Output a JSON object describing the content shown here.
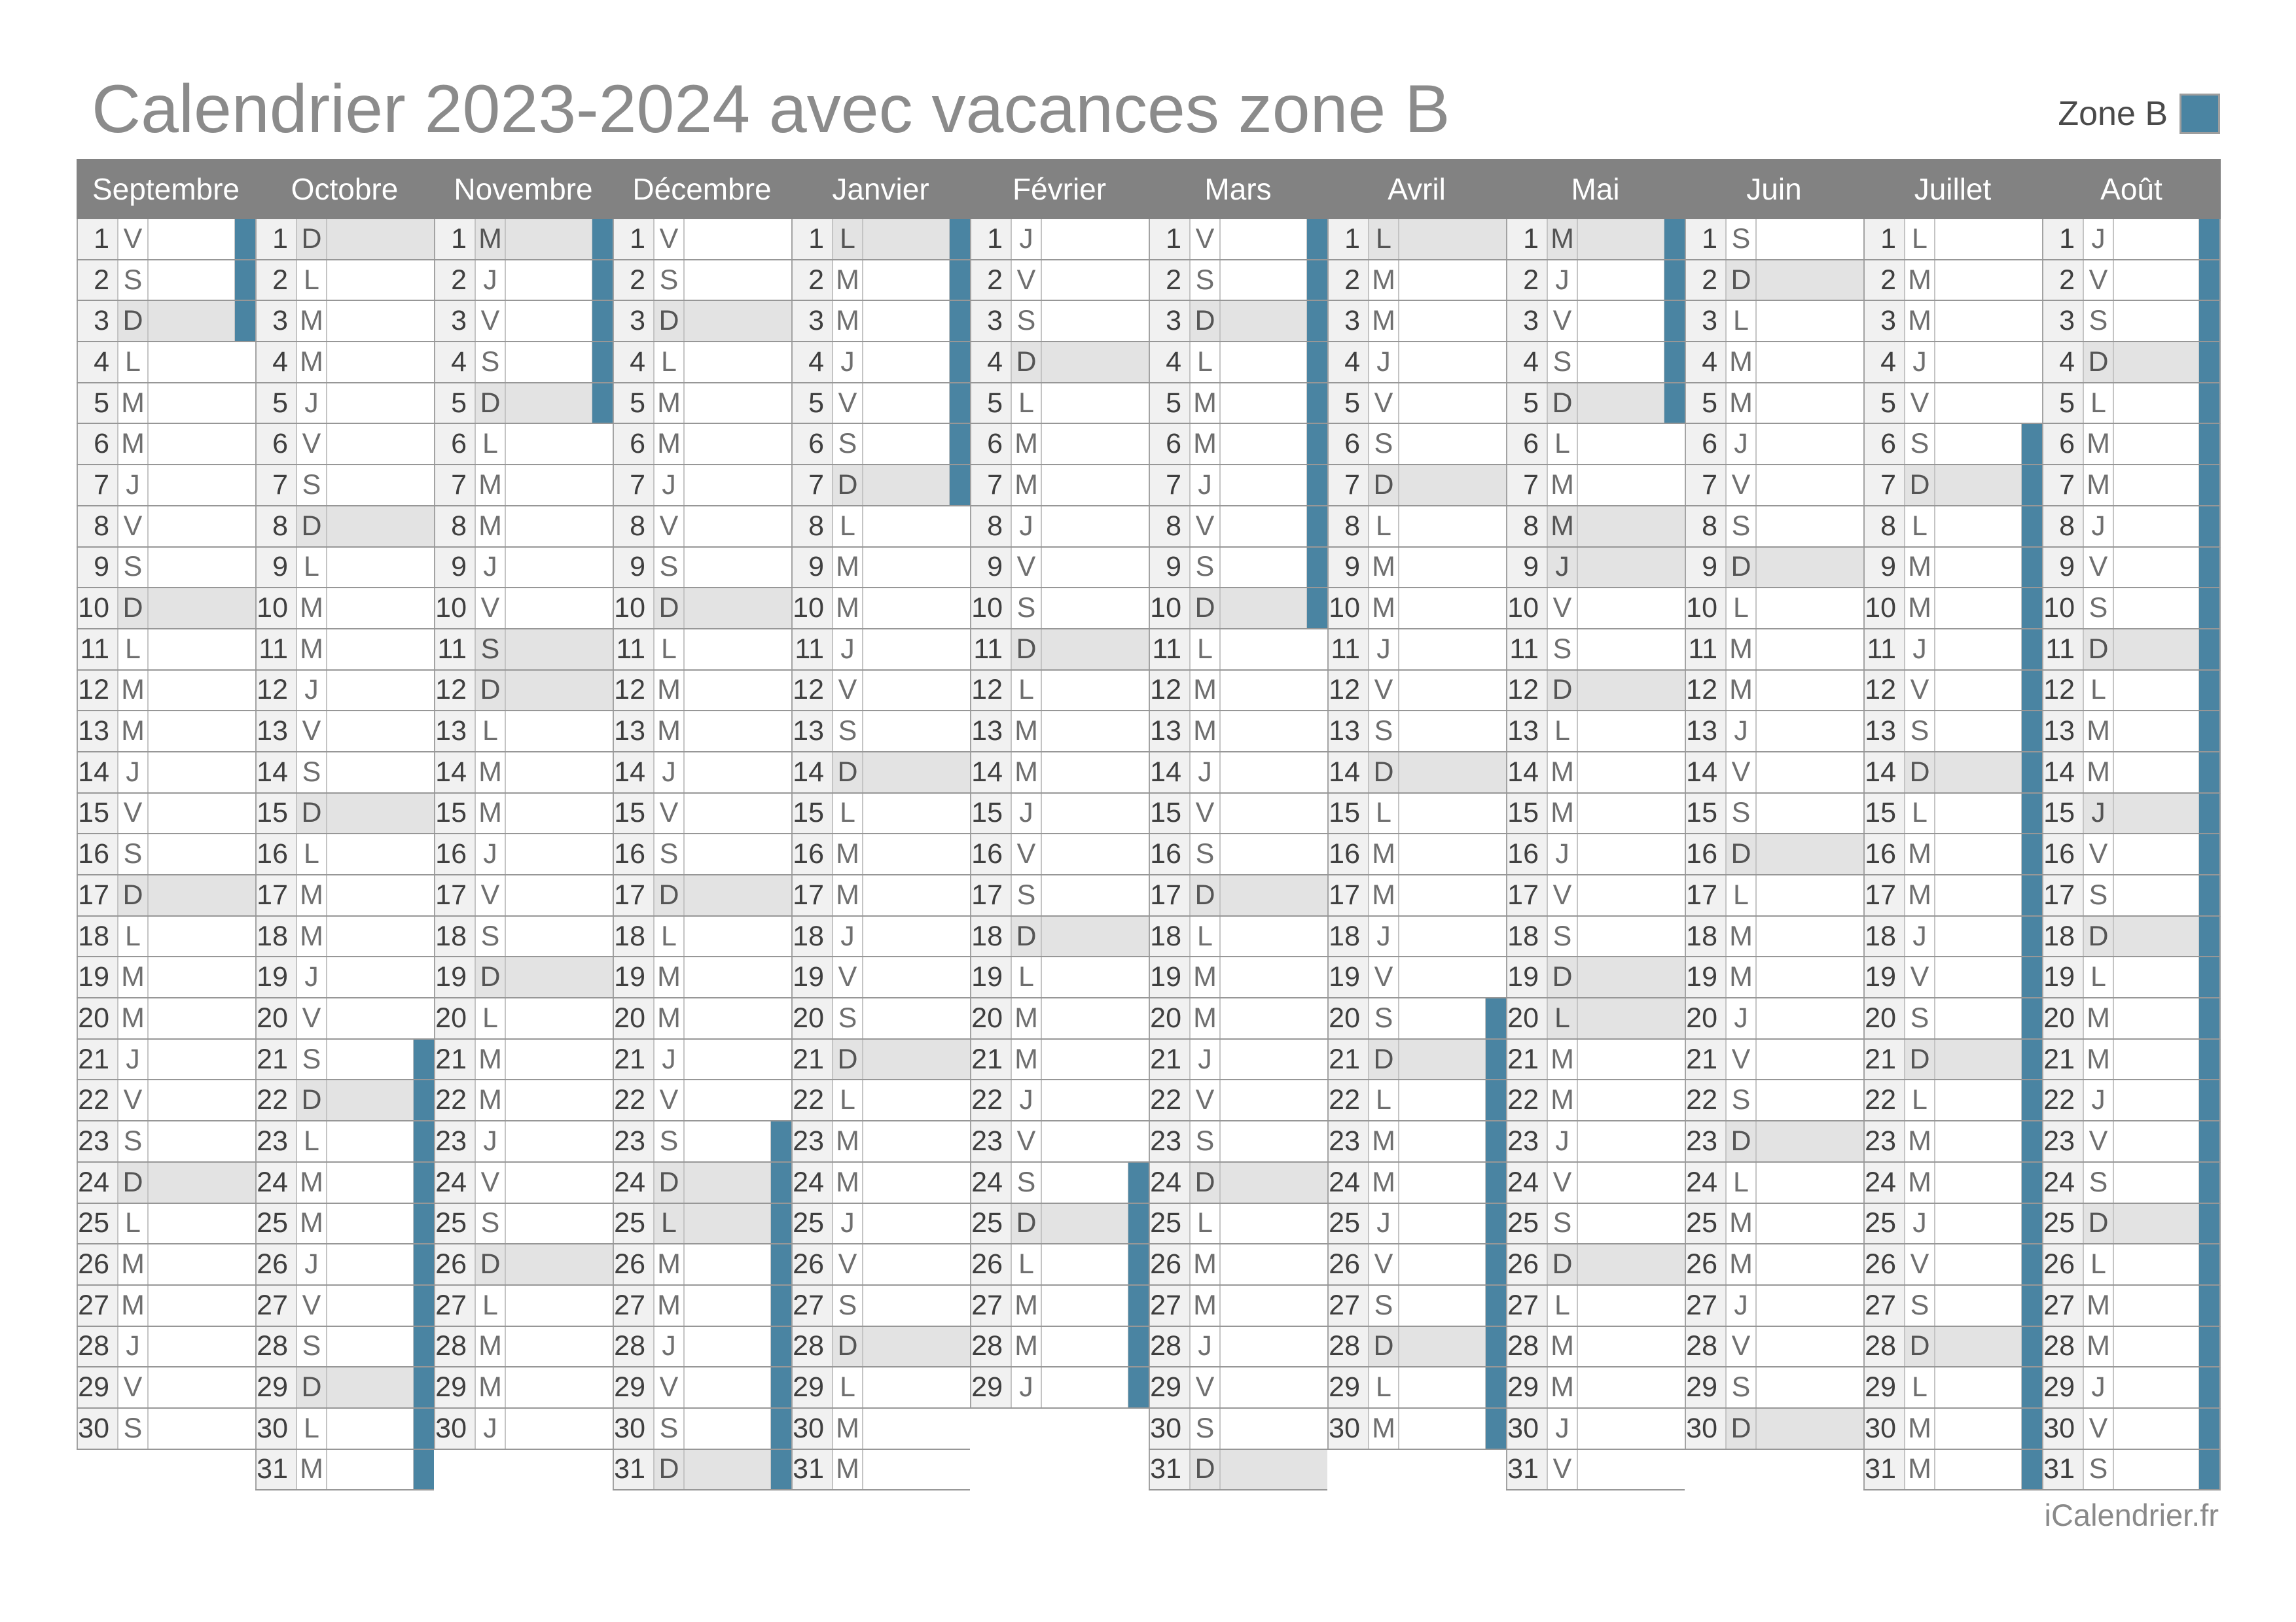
{
  "title": "Calendrier 2023-2024 avec vacances zone B",
  "legend": {
    "label": "Zone B"
  },
  "footer": {
    "credit": "iCalendrier.fr"
  },
  "colors": {
    "vacation": "#4A84A2",
    "header_bg": "#828282",
    "shaded_bg": "#E3E3E3",
    "num_bg": "#F1F1F1",
    "row_line": "#979797",
    "v_line": "#C4C4C4",
    "month_edge": "#A3A3A3"
  },
  "months": [
    {
      "name": "Septembre",
      "days": 30,
      "letters": "VSDLMMJVSDLMMJVSDLMMJVSDLMMJVS",
      "shaded_days": [
        3,
        10,
        17,
        24
      ],
      "vacation": [
        1,
        3
      ]
    },
    {
      "name": "Octobre",
      "days": 31,
      "letters": "DLMMJVSDLMMJVSDLMMJVSDLMMJVSDLM",
      "shaded_days": [
        1,
        8,
        15,
        22,
        29
      ],
      "vacation": [
        21,
        31
      ]
    },
    {
      "name": "Novembre",
      "days": 30,
      "letters": "MJVSDLMMJVSDLMMJVSDLMMJVSDLMMJ",
      "shaded_days": [
        1,
        5,
        11,
        12,
        19,
        26
      ],
      "vacation": [
        1,
        5
      ]
    },
    {
      "name": "Décembre",
      "days": 31,
      "letters": "VSDLMMJVSDLMMJVSDLMMJVSDLMMJVSD",
      "shaded_days": [
        3,
        10,
        17,
        24,
        25,
        31
      ],
      "vacation": [
        23,
        31
      ]
    },
    {
      "name": "Janvier",
      "days": 31,
      "letters": "LMMJVSDLMMJVSDLMMJVSDLMMJVSDLMM",
      "shaded_days": [
        1,
        7,
        14,
        21,
        28
      ],
      "vacation": [
        1,
        7
      ]
    },
    {
      "name": "Février",
      "days": 29,
      "letters": "JVSDLMMJVSDLMMJVSDLMMJVSDLMMJ",
      "shaded_days": [
        4,
        11,
        18,
        25
      ],
      "vacation": [
        24,
        29
      ]
    },
    {
      "name": "Mars",
      "days": 31,
      "letters": "VSDLMMJVSDLMMJVSDLMMJVSDLMMJVSD",
      "shaded_days": [
        3,
        10,
        17,
        24,
        31
      ],
      "vacation": [
        1,
        10
      ]
    },
    {
      "name": "Avril",
      "days": 30,
      "letters": "LMMJVSDLMMJVSDLMMJVSDLMMJVSDLM",
      "shaded_days": [
        1,
        7,
        14,
        21,
        28
      ],
      "vacation": [
        20,
        30
      ]
    },
    {
      "name": "Mai",
      "days": 31,
      "letters": "MJVSDLMMJVSDLMMJVSDLMMJVSDLMMJV",
      "shaded_days": [
        1,
        5,
        8,
        9,
        12,
        19,
        20,
        26
      ],
      "vacation": [
        1,
        5
      ]
    },
    {
      "name": "Juin",
      "days": 30,
      "letters": "SDLMMJVSDLMMJVSDLMMJVSDLMMJVSD",
      "shaded_days": [
        2,
        9,
        16,
        23,
        30
      ],
      "vacation": null
    },
    {
      "name": "Juillet",
      "days": 31,
      "letters": "LMMJVSDLMMJVSDLMMJVSDLMMJVSDLMM",
      "shaded_days": [
        7,
        14,
        21,
        28
      ],
      "vacation": [
        6,
        31
      ]
    },
    {
      "name": "Août",
      "days": 31,
      "letters": "JVSDLMMJVSDLMMJVSDLMMJVSDLMMJVS",
      "shaded_days": [
        4,
        11,
        15,
        18,
        25
      ],
      "vacation": [
        1,
        31
      ]
    }
  ]
}
